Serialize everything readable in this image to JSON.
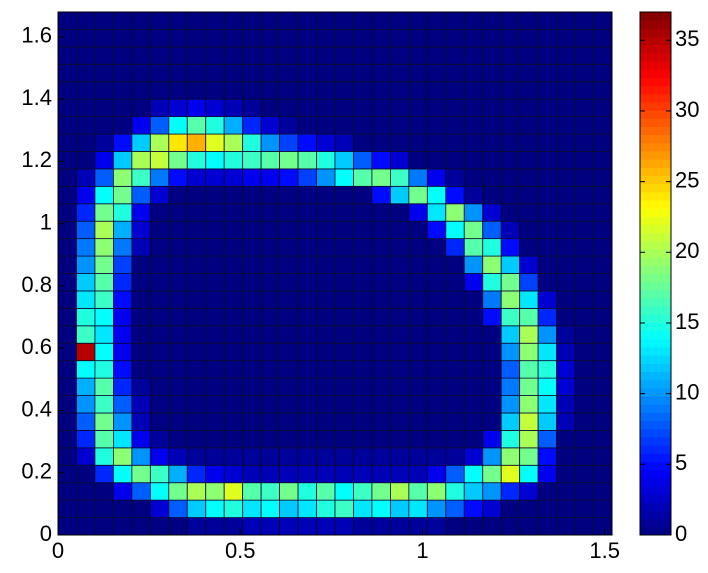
{
  "chart_data": {
    "type": "heatmap",
    "colormap": "jet",
    "xlim": [
      0,
      1.52
    ],
    "ylim": [
      0,
      1.68
    ],
    "xticks": [
      0,
      0.5,
      1,
      1.5
    ],
    "yticks": [
      0,
      0.2,
      0.4,
      0.6,
      0.8,
      1,
      1.2,
      1.4,
      1.6
    ],
    "clim": [
      0,
      37
    ],
    "cticks": [
      0,
      5,
      10,
      15,
      20,
      25,
      30,
      35
    ],
    "z": [
      [
        0,
        0,
        0,
        0,
        0,
        0,
        0,
        1,
        1,
        1,
        2,
        2,
        2,
        2,
        2,
        2,
        1,
        1,
        1,
        1,
        1,
        0,
        0,
        0,
        0,
        0,
        0,
        0,
        0,
        0
      ],
      [
        0,
        0,
        0,
        0,
        0,
        3,
        8,
        12,
        14,
        15,
        13,
        14,
        12,
        13,
        15,
        16,
        13,
        14,
        12,
        13,
        10,
        8,
        5,
        3,
        0,
        0,
        0,
        0,
        0,
        0
      ],
      [
        0,
        0,
        0,
        4,
        8,
        14,
        18,
        20,
        19,
        22,
        17,
        16,
        18,
        15,
        17,
        14,
        16,
        18,
        20,
        17,
        19,
        15,
        12,
        10,
        6,
        3,
        0,
        0,
        0,
        0
      ],
      [
        0,
        0,
        6,
        14,
        18,
        16,
        11,
        6,
        4,
        3,
        2,
        2,
        2,
        2,
        2,
        2,
        2,
        2,
        2,
        2,
        4,
        8,
        14,
        18,
        22,
        14,
        4,
        0,
        0,
        0
      ],
      [
        0,
        3,
        15,
        19,
        10,
        4,
        2,
        1,
        1,
        1,
        1,
        1,
        1,
        1,
        1,
        1,
        1,
        1,
        1,
        1,
        1,
        1,
        3,
        10,
        19,
        18,
        5,
        0,
        0,
        0
      ],
      [
        0,
        6,
        17,
        13,
        4,
        1,
        0,
        0,
        0,
        0,
        0,
        0,
        0,
        0,
        0,
        0,
        0,
        0,
        0,
        0,
        0,
        0,
        0,
        4,
        15,
        20,
        8,
        0,
        0,
        0
      ],
      [
        0,
        8,
        18,
        10,
        2,
        0,
        0,
        0,
        0,
        0,
        0,
        0,
        0,
        0,
        0,
        0,
        0,
        0,
        0,
        0,
        0,
        0,
        0,
        0,
        12,
        21,
        12,
        2,
        0,
        0
      ],
      [
        0,
        10,
        16,
        8,
        2,
        0,
        0,
        0,
        0,
        0,
        0,
        0,
        0,
        0,
        0,
        0,
        0,
        0,
        0,
        0,
        0,
        0,
        0,
        0,
        10,
        19,
        13,
        2,
        0,
        0
      ],
      [
        0,
        11,
        17,
        6,
        1,
        0,
        0,
        0,
        0,
        0,
        0,
        0,
        0,
        0,
        0,
        0,
        0,
        0,
        0,
        0,
        0,
        0,
        0,
        0,
        9,
        18,
        14,
        3,
        0,
        0
      ],
      [
        0,
        14,
        15,
        5,
        0,
        0,
        0,
        0,
        0,
        0,
        0,
        0,
        0,
        0,
        0,
        0,
        0,
        0,
        0,
        0,
        0,
        0,
        0,
        0,
        8,
        17,
        15,
        3,
        0,
        0
      ],
      [
        0,
        35,
        14,
        4,
        0,
        0,
        0,
        0,
        0,
        0,
        0,
        0,
        0,
        0,
        0,
        0,
        0,
        0,
        0,
        0,
        0,
        0,
        0,
        0,
        10,
        19,
        13,
        2,
        0,
        0
      ],
      [
        0,
        16,
        13,
        4,
        0,
        0,
        0,
        0,
        0,
        0,
        0,
        0,
        0,
        0,
        0,
        0,
        0,
        0,
        0,
        0,
        0,
        0,
        0,
        0,
        12,
        20,
        10,
        1,
        0,
        0
      ],
      [
        0,
        15,
        14,
        4,
        0,
        0,
        0,
        0,
        0,
        0,
        0,
        0,
        0,
        0,
        0,
        0,
        0,
        0,
        0,
        0,
        0,
        0,
        0,
        5,
        16,
        17,
        6,
        0,
        0,
        0
      ],
      [
        0,
        13,
        16,
        5,
        0,
        0,
        0,
        0,
        0,
        0,
        0,
        0,
        0,
        0,
        0,
        0,
        0,
        0,
        0,
        0,
        0,
        0,
        0,
        9,
        19,
        13,
        3,
        0,
        0,
        0
      ],
      [
        0,
        12,
        17,
        6,
        0,
        0,
        0,
        0,
        0,
        0,
        0,
        0,
        0,
        0,
        0,
        0,
        0,
        0,
        0,
        0,
        0,
        0,
        4,
        15,
        18,
        7,
        0,
        0,
        0,
        0
      ],
      [
        0,
        10,
        18,
        7,
        0,
        0,
        0,
        0,
        0,
        0,
        0,
        0,
        0,
        0,
        0,
        0,
        0,
        0,
        0,
        0,
        0,
        0,
        10,
        19,
        12,
        3,
        0,
        0,
        0,
        0
      ],
      [
        0,
        9,
        19,
        9,
        2,
        0,
        0,
        0,
        0,
        0,
        0,
        0,
        0,
        0,
        0,
        0,
        0,
        0,
        0,
        0,
        0,
        6,
        17,
        15,
        5,
        0,
        0,
        0,
        0,
        0
      ],
      [
        0,
        8,
        20,
        11,
        3,
        0,
        0,
        0,
        0,
        0,
        0,
        0,
        0,
        0,
        0,
        0,
        0,
        0,
        0,
        0,
        5,
        14,
        18,
        8,
        2,
        0,
        0,
        0,
        0,
        0
      ],
      [
        0,
        6,
        18,
        15,
        4,
        0,
        0,
        0,
        0,
        0,
        0,
        0,
        0,
        0,
        0,
        0,
        0,
        0,
        0,
        4,
        13,
        19,
        10,
        3,
        0,
        0,
        0,
        0,
        0,
        0
      ],
      [
        0,
        4,
        14,
        18,
        8,
        3,
        0,
        0,
        0,
        0,
        0,
        0,
        0,
        0,
        0,
        0,
        0,
        5,
        12,
        18,
        14,
        5,
        1,
        0,
        0,
        0,
        0,
        0,
        0,
        0
      ],
      [
        0,
        2,
        8,
        19,
        16,
        9,
        5,
        3,
        3,
        3,
        4,
        4,
        5,
        7,
        10,
        14,
        17,
        18,
        16,
        9,
        4,
        1,
        0,
        0,
        0,
        0,
        0,
        0,
        0,
        0
      ],
      [
        0,
        0,
        4,
        12,
        20,
        21,
        18,
        15,
        14,
        15,
        16,
        17,
        18,
        17,
        15,
        12,
        8,
        5,
        3,
        0,
        0,
        0,
        0,
        0,
        0,
        0,
        0,
        0,
        0,
        0
      ],
      [
        0,
        0,
        1,
        5,
        12,
        20,
        24,
        26,
        22,
        20,
        15,
        10,
        7,
        5,
        3,
        2,
        0,
        0,
        0,
        0,
        0,
        0,
        0,
        0,
        0,
        0,
        0,
        0,
        0,
        0
      ],
      [
        0,
        0,
        0,
        0,
        4,
        8,
        14,
        17,
        15,
        11,
        6,
        3,
        1,
        0,
        0,
        0,
        0,
        0,
        0,
        0,
        0,
        0,
        0,
        0,
        0,
        0,
        0,
        0,
        0,
        0
      ],
      [
        0,
        0,
        0,
        0,
        0,
        2,
        3,
        4,
        3,
        2,
        1,
        0,
        0,
        0,
        0,
        0,
        0,
        0,
        0,
        0,
        0,
        0,
        0,
        0,
        0,
        0,
        0,
        0,
        0,
        0
      ],
      [
        0,
        0,
        0,
        0,
        0,
        0,
        0,
        0,
        0,
        0,
        0,
        0,
        0,
        0,
        0,
        0,
        0,
        0,
        0,
        0,
        0,
        0,
        0,
        0,
        0,
        0,
        0,
        0,
        0,
        0
      ],
      [
        0,
        0,
        0,
        0,
        0,
        0,
        0,
        0,
        0,
        0,
        0,
        0,
        0,
        0,
        0,
        0,
        0,
        0,
        0,
        0,
        0,
        0,
        0,
        0,
        0,
        0,
        0,
        0,
        0,
        0
      ],
      [
        0,
        0,
        0,
        0,
        0,
        0,
        0,
        0,
        0,
        0,
        0,
        0,
        0,
        0,
        0,
        0,
        0,
        0,
        0,
        0,
        0,
        0,
        0,
        0,
        0,
        0,
        0,
        0,
        0,
        0
      ],
      [
        0,
        0,
        0,
        0,
        0,
        0,
        0,
        0,
        0,
        0,
        0,
        0,
        0,
        0,
        0,
        0,
        0,
        0,
        0,
        0,
        0,
        0,
        0,
        0,
        0,
        0,
        0,
        0,
        0,
        0
      ],
      [
        0,
        0,
        0,
        0,
        0,
        0,
        0,
        0,
        0,
        0,
        0,
        0,
        0,
        0,
        0,
        0,
        0,
        0,
        0,
        0,
        0,
        0,
        0,
        0,
        0,
        0,
        0,
        0,
        0,
        0
      ]
    ]
  }
}
